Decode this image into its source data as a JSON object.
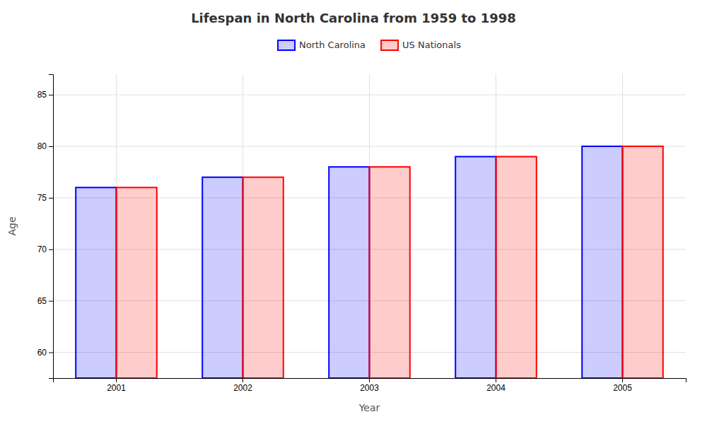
{
  "chart_data": {
    "type": "bar",
    "title": "Lifespan in North Carolina from 1959 to 1998",
    "xlabel": "Year",
    "ylabel": "Age",
    "categories": [
      "2001",
      "2002",
      "2003",
      "2004",
      "2005"
    ],
    "series": [
      {
        "name": "North Carolina",
        "color": "#0000ff",
        "values": [
          76,
          77,
          78,
          79,
          80
        ]
      },
      {
        "name": "US Nationals",
        "color": "#ff0000",
        "values": [
          76,
          77,
          78,
          79,
          80
        ]
      }
    ],
    "ylim": [
      57.5,
      87
    ],
    "yticks": [
      60,
      65,
      70,
      75,
      80,
      85
    ],
    "grid": true,
    "legend": "top"
  }
}
